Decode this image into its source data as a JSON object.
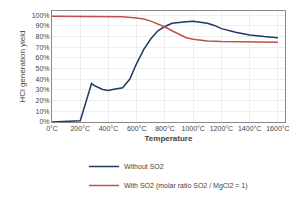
{
  "chart_data": {
    "type": "line",
    "xlabel": "Temperature",
    "ylabel": "HCl generation yield",
    "xlim": [
      0,
      1650
    ],
    "xticks": [
      {
        "value": 0,
        "label": "0°C"
      },
      {
        "value": 200,
        "label": "200°C"
      },
      {
        "value": 400,
        "label": "400°C"
      },
      {
        "value": 600,
        "label": "600°C"
      },
      {
        "value": 800,
        "label": "800°C"
      },
      {
        "value": 1000,
        "label": "1000°C"
      },
      {
        "value": 1200,
        "label": "1200°C"
      },
      {
        "value": 1400,
        "label": "1400°C"
      },
      {
        "value": 1600,
        "label": "1600°C"
      }
    ],
    "ylim": [
      0,
      1.04
    ],
    "yticks": [
      {
        "value": 0,
        "label": "0%"
      },
      {
        "value": 0.1,
        "label": "10%"
      },
      {
        "value": 0.2,
        "label": "20%"
      },
      {
        "value": 0.3,
        "label": "30%"
      },
      {
        "value": 0.4,
        "label": "40%"
      },
      {
        "value": 0.5,
        "label": "50%"
      },
      {
        "value": 0.6,
        "label": "60%"
      },
      {
        "value": 0.7,
        "label": "70%"
      },
      {
        "value": 0.8,
        "label": "80%"
      },
      {
        "value": 0.9,
        "label": "90%"
      },
      {
        "value": 1.0,
        "label": "100%"
      }
    ],
    "grid": true,
    "legend": "bottom",
    "series": [
      {
        "name": "Without SO2",
        "color": "#1F3864",
        "x": [
          0,
          100,
          180,
          200,
          280,
          300,
          360,
          400,
          430,
          500,
          550,
          600,
          650,
          700,
          750,
          800,
          850,
          900,
          950,
          1000,
          1050,
          1100,
          1150,
          1200,
          1300,
          1400,
          1500,
          1600
        ],
        "values": [
          0.0,
          0.005,
          0.01,
          0.012,
          0.36,
          0.34,
          0.305,
          0.295,
          0.305,
          0.32,
          0.4,
          0.55,
          0.68,
          0.78,
          0.855,
          0.895,
          0.925,
          0.935,
          0.94,
          0.945,
          0.935,
          0.925,
          0.905,
          0.875,
          0.84,
          0.815,
          0.8,
          0.79
        ]
      },
      {
        "name": "With SO2 (molar ratio SO2 / MgCl2 = 1)",
        "color": "#C0504D",
        "x": [
          0,
          200,
          300,
          400,
          500,
          600,
          650,
          700,
          750,
          800,
          850,
          900,
          950,
          1000,
          1050,
          1100,
          1200,
          1300,
          1400,
          1500,
          1600
        ],
        "values": [
          0.99,
          0.99,
          0.99,
          0.99,
          0.985,
          0.975,
          0.965,
          0.945,
          0.92,
          0.89,
          0.855,
          0.82,
          0.79,
          0.775,
          0.765,
          0.76,
          0.755,
          0.755,
          0.752,
          0.75,
          0.748
        ]
      }
    ]
  }
}
